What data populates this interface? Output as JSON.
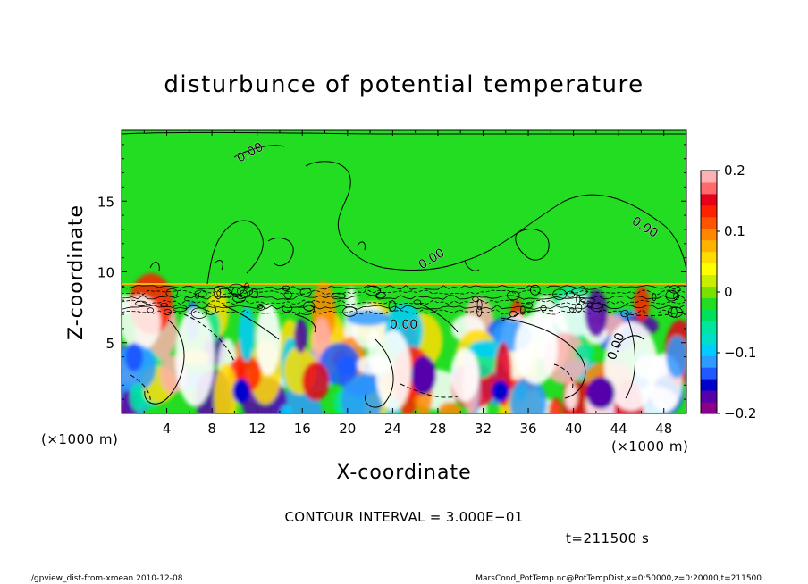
{
  "chart_data": {
    "type": "heatmap",
    "title": "disturbunce of potential temperature",
    "xlabel": "X-coordinate",
    "ylabel": "Z-coordinate",
    "x_unit_left": "(×1000 m)",
    "x_unit_right": "(×1000 m)",
    "xlim": [
      0,
      50
    ],
    "ylim": [
      0,
      20
    ],
    "x_ticks": [
      4,
      8,
      12,
      16,
      20,
      24,
      28,
      32,
      36,
      40,
      44,
      48
    ],
    "y_ticks": [
      5,
      10,
      15
    ],
    "colorbar": {
      "range": [
        -0.2,
        0.2
      ],
      "tick_labels": [
        "0.2",
        "0.1",
        "0",
        "−0.1",
        "−0.2"
      ],
      "tick_values": [
        0.2,
        0.1,
        0,
        -0.1,
        -0.2
      ],
      "colors": [
        "#8B008B",
        "#5500AA",
        "#0000CD",
        "#1E5AFF",
        "#2E9BFF",
        "#00CCFF",
        "#00E0C8",
        "#00E6A0",
        "#00E05A",
        "#22DD22",
        "#7AE000",
        "#C8EE00",
        "#FFFF00",
        "#FFDD00",
        "#FFB300",
        "#FF8800",
        "#FF5500",
        "#FF2200",
        "#E8001A",
        "#FF6A6A",
        "#FFB0B0"
      ]
    },
    "contour_labels": [
      "0.00",
      "0.00",
      "0.00",
      "0.00",
      "0.00"
    ],
    "contour_interval_text": "CONTOUR INTERVAL = 3.000E−01",
    "time_text": "t=211500 s",
    "footer_left": "./gpview_dist-from-xmean   2010-12-08",
    "footer_right": "MarsCond_PotTemp.nc@PotTempDist,x=0:50000,z=0:20000,t=211500"
  }
}
